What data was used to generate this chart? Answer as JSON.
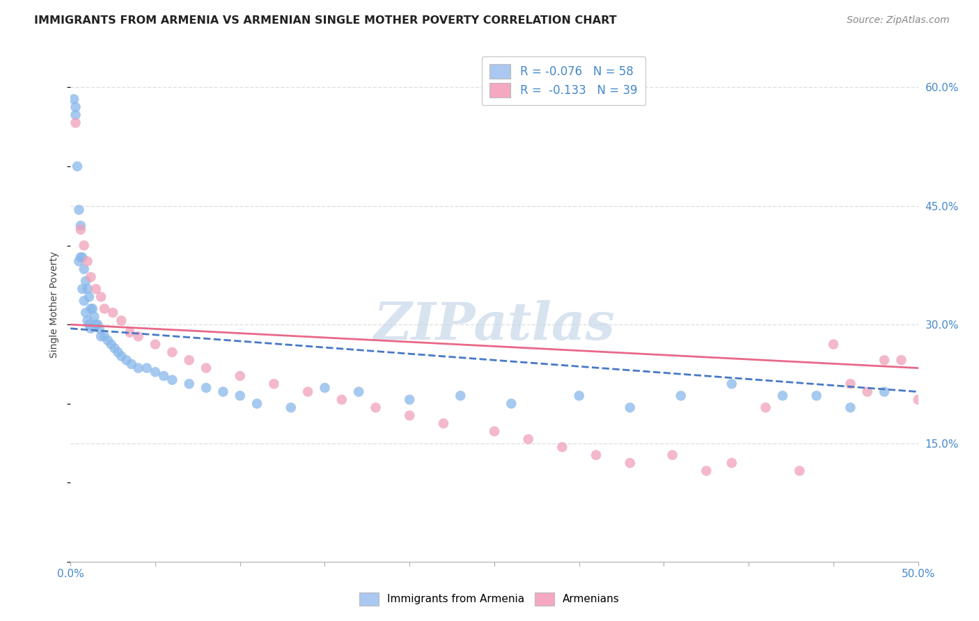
{
  "title": "IMMIGRANTS FROM ARMENIA VS ARMENIAN SINGLE MOTHER POVERTY CORRELATION CHART",
  "source": "Source: ZipAtlas.com",
  "ylabel": "Single Mother Poverty",
  "xlim": [
    0,
    0.5
  ],
  "ylim": [
    0,
    0.65
  ],
  "yticks_right": [
    0.15,
    0.3,
    0.45,
    0.6
  ],
  "ytick_right_labels": [
    "15.0%",
    "30.0%",
    "45.0%",
    "60.0%"
  ],
  "legend_label1": "R = -0.076   N = 58",
  "legend_label2": "R =  -0.133   N = 39",
  "legend_color1": "#aac8f0",
  "legend_color2": "#f5a8c0",
  "scatter1_color": "#88b8ea",
  "scatter2_color": "#f0a0b8",
  "line1_color": "#4878c8",
  "line2_color": "#e86888",
  "watermark": "ZIPatlas",
  "watermark_color": "#c8d8ea",
  "background_color": "#ffffff",
  "grid_color": "#e0e0e0",
  "title_color": "#222222",
  "axis_label_color": "#444444",
  "tick_label_color": "#4488cc",
  "blue_x": [
    0.002,
    0.003,
    0.003,
    0.004,
    0.005,
    0.005,
    0.006,
    0.006,
    0.007,
    0.007,
    0.008,
    0.008,
    0.009,
    0.009,
    0.01,
    0.01,
    0.011,
    0.011,
    0.012,
    0.012,
    0.013,
    0.014,
    0.015,
    0.016,
    0.017,
    0.018,
    0.02,
    0.022,
    0.024,
    0.026,
    0.028,
    0.03,
    0.033,
    0.036,
    0.04,
    0.045,
    0.05,
    0.055,
    0.06,
    0.07,
    0.08,
    0.09,
    0.1,
    0.11,
    0.13,
    0.15,
    0.17,
    0.2,
    0.23,
    0.26,
    0.3,
    0.33,
    0.36,
    0.39,
    0.42,
    0.44,
    0.46,
    0.48
  ],
  "blue_y": [
    0.585,
    0.575,
    0.565,
    0.5,
    0.445,
    0.38,
    0.425,
    0.385,
    0.385,
    0.345,
    0.37,
    0.33,
    0.355,
    0.315,
    0.345,
    0.305,
    0.335,
    0.3,
    0.32,
    0.295,
    0.32,
    0.31,
    0.3,
    0.3,
    0.295,
    0.285,
    0.285,
    0.28,
    0.275,
    0.27,
    0.265,
    0.26,
    0.255,
    0.25,
    0.245,
    0.245,
    0.24,
    0.235,
    0.23,
    0.225,
    0.22,
    0.215,
    0.21,
    0.2,
    0.195,
    0.22,
    0.215,
    0.205,
    0.21,
    0.2,
    0.21,
    0.195,
    0.21,
    0.225,
    0.21,
    0.21,
    0.195,
    0.215
  ],
  "pink_x": [
    0.003,
    0.006,
    0.008,
    0.01,
    0.012,
    0.015,
    0.018,
    0.02,
    0.025,
    0.03,
    0.035,
    0.04,
    0.05,
    0.06,
    0.07,
    0.08,
    0.1,
    0.12,
    0.14,
    0.16,
    0.18,
    0.2,
    0.22,
    0.25,
    0.27,
    0.29,
    0.31,
    0.33,
    0.355,
    0.375,
    0.39,
    0.41,
    0.43,
    0.45,
    0.46,
    0.47,
    0.48,
    0.49,
    0.5
  ],
  "pink_y": [
    0.555,
    0.42,
    0.4,
    0.38,
    0.36,
    0.345,
    0.335,
    0.32,
    0.315,
    0.305,
    0.29,
    0.285,
    0.275,
    0.265,
    0.255,
    0.245,
    0.235,
    0.225,
    0.215,
    0.205,
    0.195,
    0.185,
    0.175,
    0.165,
    0.155,
    0.145,
    0.135,
    0.125,
    0.135,
    0.115,
    0.125,
    0.195,
    0.115,
    0.275,
    0.225,
    0.215,
    0.255,
    0.255,
    0.205
  ],
  "line1_x0": 0.0,
  "line1_x1": 0.5,
  "line1_y0": 0.295,
  "line1_y1": 0.215,
  "line2_x0": 0.0,
  "line2_x1": 0.5,
  "line2_y0": 0.3,
  "line2_y1": 0.245
}
